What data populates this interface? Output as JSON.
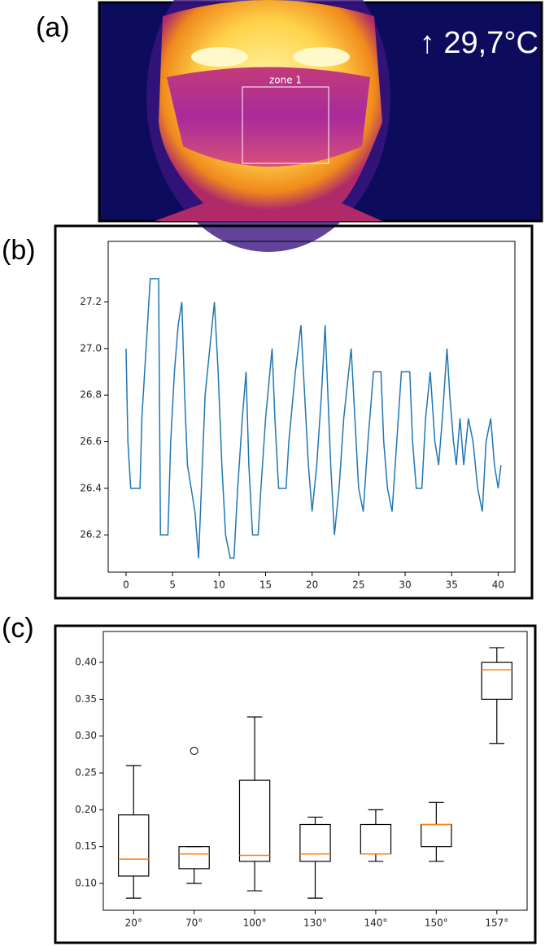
{
  "image_panel": {
    "label": "(a)",
    "zone_label": "zone 1",
    "temperature": "↑ 29,7°C"
  },
  "chart_data": [
    {
      "type": "line",
      "label": "(b)",
      "color": "#1f77b4",
      "x": [
        0,
        0.2,
        0.5,
        1.5,
        1.7,
        2.0,
        2.3,
        2.6,
        3.5,
        3.7,
        4.5,
        4.8,
        5.2,
        5.6,
        6.0,
        6.3,
        6.6,
        7.0,
        7.4,
        7.8,
        8.1,
        8.5,
        9.0,
        9.5,
        9.9,
        10.3,
        10.7,
        11.2,
        11.6,
        12.0,
        12.5,
        12.9,
        13.2,
        13.6,
        14.2,
        14.5,
        15.0,
        15.7,
        16.0,
        16.4,
        17.2,
        17.5,
        18.2,
        18.8,
        19.2,
        19.6,
        20.0,
        20.5,
        21.0,
        21.4,
        21.7,
        22.0,
        22.4,
        22.9,
        23.4,
        24.2,
        24.6,
        25.0,
        25.5,
        26.0,
        26.6,
        27.4,
        27.7,
        28.1,
        28.6,
        29.1,
        29.6,
        30.5,
        30.8,
        31.2,
        31.8,
        32.2,
        32.7,
        33.2,
        33.6,
        34.0,
        34.5,
        34.8,
        35.2,
        35.5,
        35.9,
        36.3,
        36.8,
        37.3,
        37.8,
        38.3,
        38.7,
        39.2,
        39.6,
        40.0,
        40.3
      ],
      "values": [
        27.0,
        26.6,
        26.4,
        26.4,
        26.7,
        26.9,
        27.1,
        27.3,
        27.3,
        26.2,
        26.2,
        26.6,
        26.9,
        27.1,
        27.2,
        26.8,
        26.5,
        26.4,
        26.3,
        26.1,
        26.4,
        26.8,
        27.0,
        27.2,
        26.9,
        26.5,
        26.2,
        26.1,
        26.1,
        26.4,
        26.7,
        26.9,
        26.5,
        26.2,
        26.2,
        26.4,
        26.7,
        27.0,
        26.7,
        26.4,
        26.4,
        26.6,
        26.9,
        27.1,
        26.8,
        26.5,
        26.3,
        26.5,
        26.8,
        27.1,
        26.8,
        26.5,
        26.2,
        26.4,
        26.7,
        27.0,
        26.7,
        26.4,
        26.3,
        26.6,
        26.9,
        26.9,
        26.6,
        26.4,
        26.3,
        26.6,
        26.9,
        26.9,
        26.6,
        26.4,
        26.4,
        26.7,
        26.9,
        26.6,
        26.5,
        26.7,
        27.0,
        26.8,
        26.6,
        26.5,
        26.7,
        26.5,
        26.7,
        26.6,
        26.4,
        26.3,
        26.6,
        26.7,
        26.5,
        26.4,
        26.5
      ],
      "xlim": [
        -1.92,
        41.8
      ],
      "xticks": [
        0,
        5,
        10,
        15,
        20,
        25,
        30,
        35,
        40
      ],
      "ylim": [
        26.04,
        27.46
      ],
      "yticks": [
        26.2,
        26.4,
        26.6,
        26.8,
        {
          "value": 27.0,
          "label": "27.0"
        },
        27.2
      ]
    },
    {
      "type": "box",
      "label": "(c)",
      "box_color": "#000000",
      "median_color": "#ff7f0e",
      "categories": [
        "20°",
        "70°",
        "100°",
        "130°",
        "140°",
        "150°",
        "157°"
      ],
      "boxes": [
        {
          "whislo": 0.08,
          "q1": 0.11,
          "med": 0.133,
          "q3": 0.193,
          "whishi": 0.26,
          "fliers": []
        },
        {
          "whislo": 0.1,
          "q1": 0.12,
          "med": 0.14,
          "q3": 0.15,
          "whishi": 0.15,
          "fliers": [
            0.28
          ]
        },
        {
          "whislo": 0.09,
          "q1": 0.13,
          "med": 0.138,
          "q3": 0.24,
          "whishi": 0.326,
          "fliers": []
        },
        {
          "whislo": 0.08,
          "q1": 0.13,
          "med": 0.14,
          "q3": 0.18,
          "whishi": 0.19,
          "fliers": []
        },
        {
          "whislo": 0.13,
          "q1": 0.14,
          "med": 0.14,
          "q3": 0.18,
          "whishi": 0.2,
          "fliers": []
        },
        {
          "whislo": 0.13,
          "q1": 0.15,
          "med": 0.18,
          "q3": 0.18,
          "whishi": 0.21,
          "fliers": []
        },
        {
          "whislo": 0.29,
          "q1": 0.35,
          "med": 0.39,
          "q3": 0.4,
          "whishi": 0.42,
          "fliers": []
        }
      ],
      "ylim": [
        0.0636,
        0.442
      ],
      "yticks": [
        {
          "value": 0.1,
          "label": "0.10"
        },
        {
          "value": 0.15,
          "label": "0.15"
        },
        {
          "value": 0.2,
          "label": "0.20"
        },
        {
          "value": 0.25,
          "label": "0.25"
        },
        {
          "value": 0.3,
          "label": "0.30"
        },
        {
          "value": 0.35,
          "label": "0.35"
        },
        {
          "value": 0.4,
          "label": "0.40"
        }
      ]
    }
  ]
}
